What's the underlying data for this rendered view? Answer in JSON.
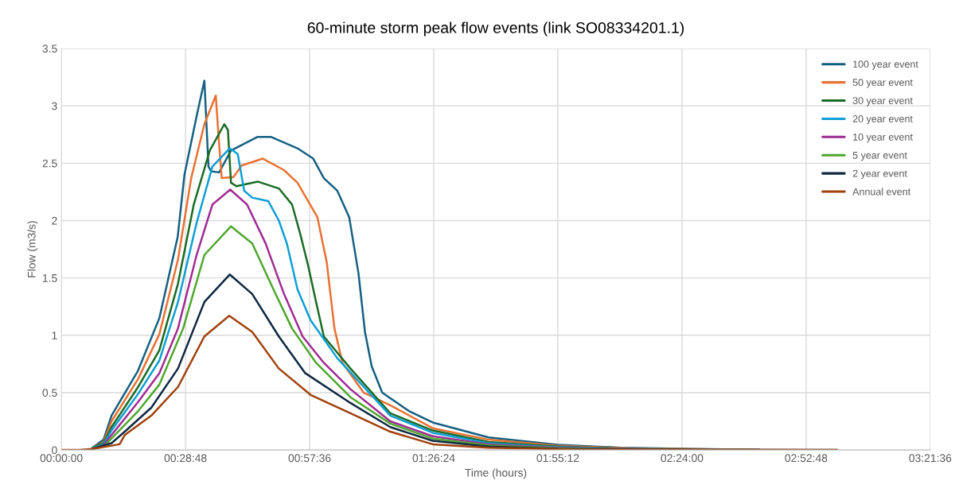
{
  "chart_data": {
    "type": "line",
    "title": "60-minute storm peak flow events (link SO08334201.1)",
    "xlabel": "Time (hours)",
    "ylabel": "Flow (m3/s)",
    "xlim": [
      0,
      3.36
    ],
    "xticks": [
      {
        "value": 0,
        "label": "00:00:00"
      },
      {
        "value": 0.48,
        "label": "00:28:48"
      },
      {
        "value": 0.96,
        "label": "00:57:36"
      },
      {
        "value": 1.44,
        "label": "01:26:24"
      },
      {
        "value": 1.92,
        "label": "01:55:12"
      },
      {
        "value": 2.4,
        "label": "02:24:00"
      },
      {
        "value": 2.88,
        "label": "02:52:48"
      },
      {
        "value": 3.36,
        "label": "03:21:36"
      }
    ],
    "ylim": [
      0,
      3.5
    ],
    "yticks": [
      0,
      0.5,
      1,
      1.5,
      2,
      2.5,
      3,
      3.5
    ],
    "grid": true,
    "legend": "top right",
    "marker": "none",
    "line_style": "solid",
    "series": [
      {
        "name": "100 year event",
        "color": "#156082",
        "x": [
          0.12,
          0.163,
          0.194,
          0.296,
          0.379,
          0.45,
          0.476,
          0.523,
          0.553,
          0.569,
          0.579,
          0.61,
          0.656,
          0.759,
          0.81,
          0.913,
          0.974,
          1.015,
          1.067,
          1.113,
          1.149,
          1.174,
          1.2,
          1.241,
          1.344,
          1.436,
          1.652,
          1.919,
          2.165,
          2.7
        ],
        "values": [
          0.02,
          0.09,
          0.3,
          0.69,
          1.15,
          1.86,
          2.4,
          2.91,
          3.22,
          2.47,
          2.43,
          2.42,
          2.61,
          2.73,
          2.73,
          2.63,
          2.54,
          2.37,
          2.26,
          2.03,
          1.54,
          1.03,
          0.73,
          0.5,
          0.34,
          0.24,
          0.11,
          0.046,
          0.02,
          0
        ]
      },
      {
        "name": "50 year event",
        "color": "#e97132",
        "x": [
          0.12,
          0.163,
          0.194,
          0.297,
          0.379,
          0.451,
          0.502,
          0.553,
          0.597,
          0.61,
          0.62,
          0.666,
          0.697,
          0.779,
          0.861,
          0.913,
          0.99,
          1.026,
          1.056,
          1.087,
          1.169,
          1.272,
          1.436,
          1.652,
          1.919,
          2.2,
          2.7
        ],
        "values": [
          0.02,
          0.07,
          0.25,
          0.62,
          1.01,
          1.66,
          2.37,
          2.84,
          3.09,
          2.67,
          2.37,
          2.38,
          2.48,
          2.54,
          2.44,
          2.33,
          2.03,
          1.64,
          1.06,
          0.76,
          0.5,
          0.39,
          0.19,
          0.09,
          0.037,
          0.015,
          0
        ]
      },
      {
        "name": "30 year event",
        "color": "#196b24",
        "x": [
          0.12,
          0.163,
          0.194,
          0.297,
          0.379,
          0.451,
          0.512,
          0.574,
          0.63,
          0.644,
          0.656,
          0.677,
          0.759,
          0.841,
          0.892,
          0.923,
          0.954,
          0.985,
          1.015,
          1.118,
          1.272,
          1.436,
          1.652,
          1.919,
          2.2,
          2.7
        ],
        "values": [
          0.02,
          0.06,
          0.2,
          0.55,
          0.87,
          1.45,
          2.14,
          2.61,
          2.84,
          2.79,
          2.33,
          2.3,
          2.34,
          2.28,
          2.14,
          1.89,
          1.61,
          1.29,
          0.99,
          0.71,
          0.32,
          0.17,
          0.07,
          0.03,
          0.01,
          0
        ]
      },
      {
        "name": "20 year event",
        "color": "#0f9ed5",
        "x": [
          0.12,
          0.163,
          0.194,
          0.297,
          0.379,
          0.451,
          0.523,
          0.584,
          0.651,
          0.682,
          0.707,
          0.738,
          0.8,
          0.841,
          0.872,
          0.913,
          0.964,
          1.067,
          1.272,
          1.436,
          1.652,
          1.919,
          2.2,
          2.7
        ],
        "values": [
          0.015,
          0.05,
          0.17,
          0.49,
          0.78,
          1.29,
          1.98,
          2.47,
          2.63,
          2.58,
          2.26,
          2.2,
          2.17,
          2.0,
          1.8,
          1.4,
          1.13,
          0.8,
          0.3,
          0.15,
          0.06,
          0.025,
          0.01,
          0
        ]
      },
      {
        "name": "10 year event",
        "color": "#a02b93",
        "x": [
          0.12,
          0.163,
          0.194,
          0.297,
          0.379,
          0.451,
          0.523,
          0.584,
          0.653,
          0.718,
          0.79,
          0.861,
          0.933,
          1.015,
          1.118,
          1.272,
          1.436,
          1.652,
          1.919,
          2.3,
          2.7
        ],
        "values": [
          0.01,
          0.04,
          0.13,
          0.42,
          0.67,
          1.06,
          1.7,
          2.14,
          2.27,
          2.14,
          1.8,
          1.36,
          0.99,
          0.76,
          0.53,
          0.25,
          0.12,
          0.05,
          0.02,
          0.005,
          0
        ]
      },
      {
        "name": "5 year event",
        "color": "#4ea72e",
        "x": [
          0.12,
          0.163,
          0.194,
          0.297,
          0.379,
          0.471,
          0.553,
          0.656,
          0.738,
          0.82,
          0.892,
          0.985,
          1.118,
          1.272,
          1.436,
          1.652,
          1.919,
          2.3,
          2.7
        ],
        "values": [
          0.01,
          0.03,
          0.1,
          0.34,
          0.57,
          1.06,
          1.7,
          1.95,
          1.8,
          1.4,
          1.06,
          0.76,
          0.46,
          0.23,
          0.1,
          0.04,
          0.015,
          0.004,
          0
        ]
      },
      {
        "name": "2 year event",
        "color": "#0e2841",
        "x": [
          0.12,
          0.194,
          0.245,
          0.348,
          0.451,
          0.553,
          0.651,
          0.738,
          0.841,
          0.943,
          1.118,
          1.272,
          1.436,
          1.652,
          1.919,
          2.4,
          3.0
        ],
        "values": [
          0.01,
          0.06,
          0.16,
          0.37,
          0.71,
          1.29,
          1.53,
          1.36,
          0.99,
          0.67,
          0.41,
          0.2,
          0.08,
          0.03,
          0.01,
          0.002,
          0
        ]
      },
      {
        "name": "Annual event",
        "color": "#a0410d",
        "x": [
          0,
          0.07,
          0.12,
          0.225,
          0.245,
          0.348,
          0.451,
          0.553,
          0.649,
          0.738,
          0.841,
          0.964,
          1.118,
          1.272,
          1.436,
          1.652,
          2.0,
          3.0
        ],
        "values": [
          0,
          0,
          0.01,
          0.05,
          0.13,
          0.3,
          0.55,
          0.99,
          1.17,
          1.03,
          0.71,
          0.48,
          0.32,
          0.16,
          0.05,
          0.02,
          0.005,
          0
        ]
      }
    ]
  }
}
